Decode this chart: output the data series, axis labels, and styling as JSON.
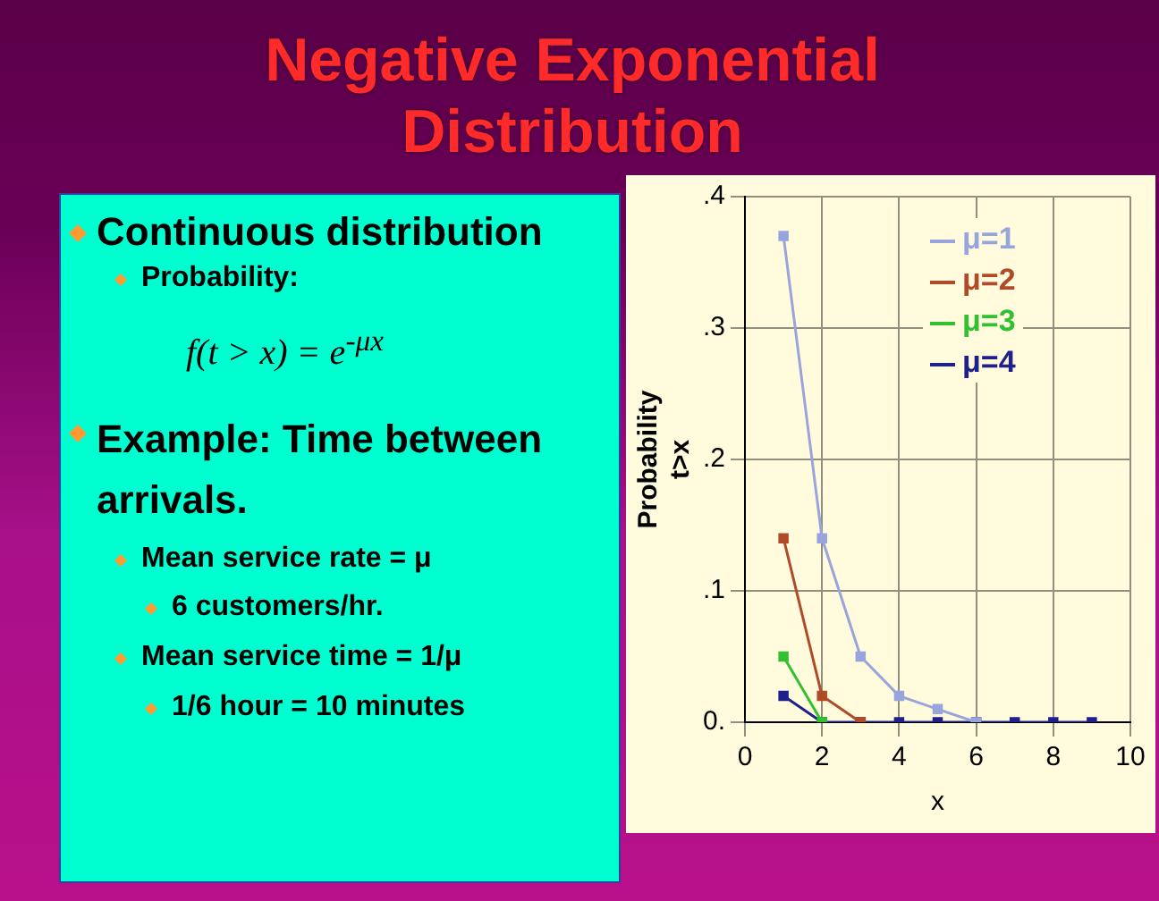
{
  "chart_data": {
    "type": "line",
    "title": "Negative Exponential Distribution",
    "xlabel": "x",
    "ylabel": "Probability\nt>x",
    "x": [
      1,
      2,
      3,
      4,
      5,
      6,
      7,
      8,
      9
    ],
    "series": [
      {
        "name": "μ=1",
        "color": "#98a4dc",
        "values": [
          0.37,
          0.14,
          0.05,
          0.02,
          0.01,
          0,
          null,
          null,
          null
        ]
      },
      {
        "name": "μ=2",
        "color": "#b04a28",
        "values": [
          0.14,
          0.02,
          0,
          null,
          null,
          null,
          null,
          null,
          null
        ]
      },
      {
        "name": "μ=3",
        "color": "#30c030",
        "values": [
          0.05,
          0,
          null,
          null,
          null,
          null,
          null,
          null,
          null
        ]
      },
      {
        "name": "μ=4",
        "color": "#20208a",
        "values": [
          0.02,
          0,
          0,
          0,
          0,
          0,
          0,
          0,
          0
        ]
      }
    ],
    "xlim": [
      0,
      10
    ],
    "xticks": [
      0,
      2,
      4,
      6,
      8,
      10
    ],
    "ylim": [
      0,
      0.4
    ],
    "yticks": [
      {
        "value": 0,
        "label": "0."
      },
      {
        "value": 0.1,
        "label": ".1"
      },
      {
        "value": 0.2,
        "label": ".2"
      },
      {
        "value": 0.3,
        "label": ".3"
      },
      {
        "value": 0.4,
        "label": ".4"
      }
    ],
    "grid": true,
    "legend": "top right",
    "marker": "square",
    "line_style": "solid",
    "annotations": [
      "Continuous distribution",
      "Probability:",
      "f(t > x) = e$^{-μx}$",
      "Example: Time between arrivals.",
      "Mean service rate = μ",
      "6 customers/hr.",
      "Mean service time = 1/μ",
      "1/6 hour = 10 minutes"
    ]
  }
}
